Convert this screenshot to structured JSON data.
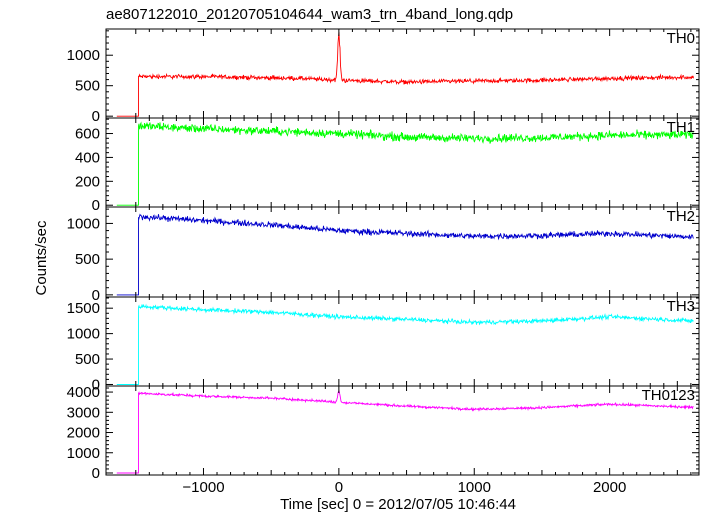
{
  "chart_data": {
    "type": "line",
    "title": "ae807122010_20120705104644_wam3_trn_4band_long.qdp",
    "xlabel": "Time [sec] 0 = 2012/07/05 10:46:44",
    "ylabel": "Counts/sec",
    "xlim": [
      -1720,
      2660
    ],
    "xticks": [
      -1000,
      0,
      1000,
      2000
    ],
    "panels": [
      {
        "name": "TH0",
        "color": "#ff0000",
        "ylim": [
          -30,
          1430
        ],
        "yticks": [
          0,
          500,
          1000
        ],
        "pre_level": 0,
        "noise": 30,
        "level": [
          [
            -1500,
            650
          ],
          [
            -1000,
            650
          ],
          [
            -300,
            620
          ],
          [
            0,
            590
          ],
          [
            500,
            560
          ],
          [
            1000,
            575
          ],
          [
            1500,
            590
          ],
          [
            2000,
            620
          ],
          [
            2600,
            640
          ]
        ],
        "spike": {
          "x": 0,
          "peak": 1400,
          "width": 12
        }
      },
      {
        "name": "TH1",
        "color": "#00ff00",
        "ylim": [
          -15,
          730
        ],
        "yticks": [
          0,
          200,
          400,
          600
        ],
        "pre_level": 0,
        "noise": 30,
        "level": [
          [
            -1500,
            665
          ],
          [
            -1000,
            640
          ],
          [
            0,
            600
          ],
          [
            500,
            570
          ],
          [
            1000,
            560
          ],
          [
            1500,
            565
          ],
          [
            2000,
            585
          ],
          [
            2600,
            590
          ]
        ],
        "spike": null
      },
      {
        "name": "TH2",
        "color": "#0000cc",
        "ylim": [
          -30,
          1230
        ],
        "yticks": [
          0,
          500,
          1000
        ],
        "pre_level": 0,
        "noise": 35,
        "level": [
          [
            -1500,
            1100
          ],
          [
            -1000,
            1040
          ],
          [
            -500,
            980
          ],
          [
            0,
            900
          ],
          [
            500,
            860
          ],
          [
            1000,
            820
          ],
          [
            1500,
            830
          ],
          [
            2000,
            860
          ],
          [
            2600,
            810
          ]
        ],
        "spike": null
      },
      {
        "name": "TH3",
        "color": "#00ffff",
        "ylim": [
          -30,
          1720
        ],
        "yticks": [
          0,
          500,
          1000,
          1500
        ],
        "pre_level": 0,
        "noise": 35,
        "level": [
          [
            -1500,
            1540
          ],
          [
            -1000,
            1470
          ],
          [
            -500,
            1420
          ],
          [
            0,
            1330
          ],
          [
            500,
            1280
          ],
          [
            1000,
            1220
          ],
          [
            1500,
            1250
          ],
          [
            2000,
            1330
          ],
          [
            2600,
            1250
          ]
        ],
        "spike": null
      },
      {
        "name": "TH0123",
        "color": "#ff00ff",
        "ylim": [
          -100,
          4300
        ],
        "yticks": [
          0,
          1000,
          2000,
          3000,
          4000
        ],
        "pre_level": 0,
        "noise": 50,
        "level": [
          [
            -1500,
            3950
          ],
          [
            -1000,
            3800
          ],
          [
            -500,
            3700
          ],
          [
            0,
            3500
          ],
          [
            500,
            3300
          ],
          [
            1000,
            3150
          ],
          [
            1500,
            3230
          ],
          [
            2000,
            3400
          ],
          [
            2600,
            3250
          ]
        ],
        "spike": {
          "x": 0,
          "peak": 4100,
          "width": 12
        }
      }
    ],
    "onset_x": -1480,
    "data_start_x": -1640,
    "data_end_x": 2620,
    "grid": false,
    "legend": "none"
  }
}
